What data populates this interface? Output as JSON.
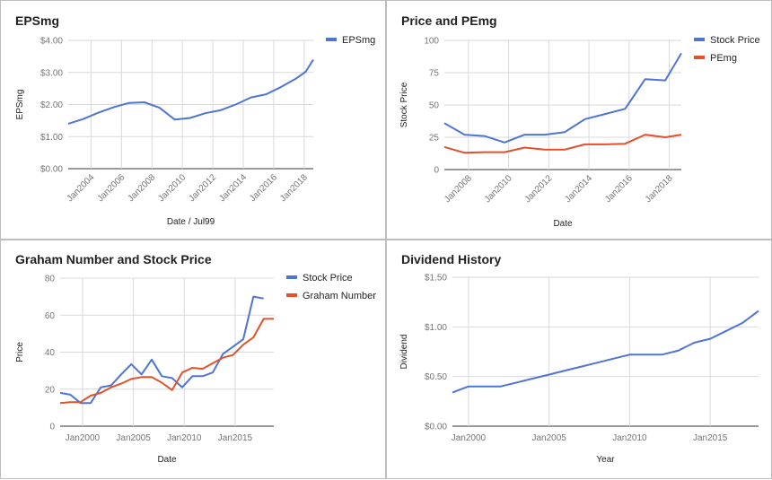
{
  "colors": {
    "blue": "#4e74d4",
    "red": "#e2512b",
    "grid": "#d9d9d9",
    "baseline": "#333333"
  },
  "chart_data": [
    {
      "type": "line",
      "title": "EPSmg",
      "xlabel": "Date / Jul99",
      "ylabel": "EPSmg",
      "xlim": [
        2002.5,
        2018.6
      ],
      "ylim": [
        0,
        4
      ],
      "yticks": [
        0,
        1,
        2,
        3,
        4
      ],
      "ytick_labels": [
        "$0.00",
        "$1.00",
        "$2.00",
        "$3.00",
        "$4.00"
      ],
      "xticks": [
        2004,
        2006,
        2008,
        2010,
        2012,
        2014,
        2016,
        2018
      ],
      "xtick_labels": [
        "Jan2004",
        "Jan2006",
        "Jan2008",
        "Jan2010",
        "Jan2012",
        "Jan2014",
        "Jan2016",
        "Jan2018"
      ],
      "legend_position": "right",
      "series": [
        {
          "name": "EPSmg",
          "color": "#4e74d4",
          "x": [
            2002.5,
            2003.5,
            2004.5,
            2005.5,
            2006.5,
            2007.5,
            2008.5,
            2009.5,
            2010.5,
            2011.5,
            2012.5,
            2013.5,
            2014.5,
            2015.5,
            2016.5,
            2017.5,
            2018.1,
            2018.6
          ],
          "values": [
            1.4,
            1.55,
            1.75,
            1.92,
            2.05,
            2.07,
            1.9,
            1.53,
            1.58,
            1.73,
            1.82,
            2.0,
            2.22,
            2.32,
            2.55,
            2.82,
            3.02,
            3.4
          ]
        }
      ]
    },
    {
      "type": "line",
      "title": "Price and PEmg",
      "xlabel": "Date",
      "ylabel": "Stock Price",
      "xlim": [
        2006.8,
        2018.6
      ],
      "ylim": [
        0,
        100
      ],
      "yticks": [
        0,
        25,
        50,
        75,
        100
      ],
      "ytick_labels": [
        "0",
        "25",
        "50",
        "75",
        "100"
      ],
      "xticks": [
        2008,
        2010,
        2012,
        2014,
        2016,
        2018
      ],
      "xtick_labels": [
        "Jan2008",
        "Jan2010",
        "Jan2012",
        "Jan2014",
        "Jan2016",
        "Jan2018"
      ],
      "legend_position": "right",
      "series": [
        {
          "name": "Stock Price",
          "color": "#4e74d4",
          "x": [
            2006.8,
            2007.8,
            2008.8,
            2009.8,
            2010.8,
            2011.8,
            2012.8,
            2013.8,
            2014.8,
            2015.8,
            2016.8,
            2017.8,
            2018.6
          ],
          "values": [
            36,
            27,
            26,
            21,
            27,
            27,
            29,
            39,
            43,
            47,
            70,
            69,
            90
          ]
        },
        {
          "name": "PEmg",
          "color": "#e2512b",
          "x": [
            2006.8,
            2007.8,
            2008.8,
            2009.8,
            2010.8,
            2011.8,
            2012.8,
            2013.8,
            2014.8,
            2015.8,
            2016.8,
            2017.8,
            2018.6
          ],
          "values": [
            17.5,
            13,
            13.5,
            13.5,
            17,
            15.5,
            15.5,
            19.5,
            19.5,
            20,
            27,
            25,
            27
          ]
        }
      ]
    },
    {
      "type": "line",
      "title": "Graham Number and Stock Price",
      "xlabel": "Date",
      "ylabel": "Price",
      "xlim": [
        1997.8,
        2018.8
      ],
      "ylim": [
        0,
        80
      ],
      "yticks": [
        0,
        20,
        40,
        60,
        80
      ],
      "ytick_labels": [
        "0",
        "20",
        "40",
        "60",
        "80"
      ],
      "xticks": [
        2000,
        2005,
        2010,
        2015
      ],
      "xtick_labels": [
        "Jan2000",
        "Jan2005",
        "Jan2010",
        "Jan2015"
      ],
      "legend_position": "right",
      "series": [
        {
          "name": "Stock Price",
          "color": "#4e74d4",
          "x": [
            1997.8,
            1998.8,
            1999.8,
            2000.8,
            2001.8,
            2002.8,
            2003.8,
            2004.8,
            2005.8,
            2006.8,
            2007.8,
            2008.8,
            2009.8,
            2010.8,
            2011.8,
            2012.8,
            2013.8,
            2014.8,
            2015.8,
            2016.8,
            2017.8
          ],
          "values": [
            18,
            17,
            12.5,
            12.5,
            21,
            22,
            28,
            33.5,
            28,
            36,
            27,
            26,
            21,
            27,
            27,
            29,
            39,
            43,
            47,
            70,
            69
          ]
        },
        {
          "name": "Graham Number",
          "color": "#e2512b",
          "x": [
            1997.8,
            1998.8,
            1999.8,
            2000.8,
            2001.8,
            2002.8,
            2003.8,
            2004.8,
            2005.8,
            2006.8,
            2007.8,
            2008.8,
            2009.8,
            2010.8,
            2011.8,
            2012.8,
            2013.8,
            2014.8,
            2015.8,
            2016.8,
            2017.8,
            2018.8
          ],
          "values": [
            12.5,
            13,
            13,
            16.5,
            18,
            21,
            23,
            25.5,
            26.5,
            26.5,
            23.5,
            19.5,
            29,
            31.5,
            31,
            34,
            37,
            38.5,
            44,
            48,
            58,
            58
          ]
        }
      ]
    },
    {
      "type": "line",
      "title": "Dividend History",
      "xlabel": "Year",
      "ylabel": "Dividend",
      "xlim": [
        1999,
        2018
      ],
      "ylim": [
        0,
        1.5
      ],
      "yticks": [
        0,
        0.5,
        1.0,
        1.5
      ],
      "ytick_labels": [
        "$0.00",
        "$0.50",
        "$1.00",
        "$1.50"
      ],
      "xticks": [
        2000,
        2005,
        2010,
        2015
      ],
      "xtick_labels": [
        "Jan2000",
        "Jan2005",
        "Jan2010",
        "Jan2015"
      ],
      "series": [
        {
          "name": "",
          "color": "#4e74d4",
          "x": [
            1999,
            2000,
            2001,
            2002,
            2003,
            2004,
            2005,
            2006,
            2007,
            2008,
            2009,
            2010,
            2011,
            2012,
            2013,
            2014,
            2015,
            2016,
            2017,
            2018
          ],
          "values": [
            0.34,
            0.4,
            0.4,
            0.4,
            0.44,
            0.48,
            0.52,
            0.56,
            0.6,
            0.64,
            0.68,
            0.72,
            0.72,
            0.72,
            0.76,
            0.84,
            0.88,
            0.96,
            1.04,
            1.16
          ]
        }
      ]
    }
  ]
}
